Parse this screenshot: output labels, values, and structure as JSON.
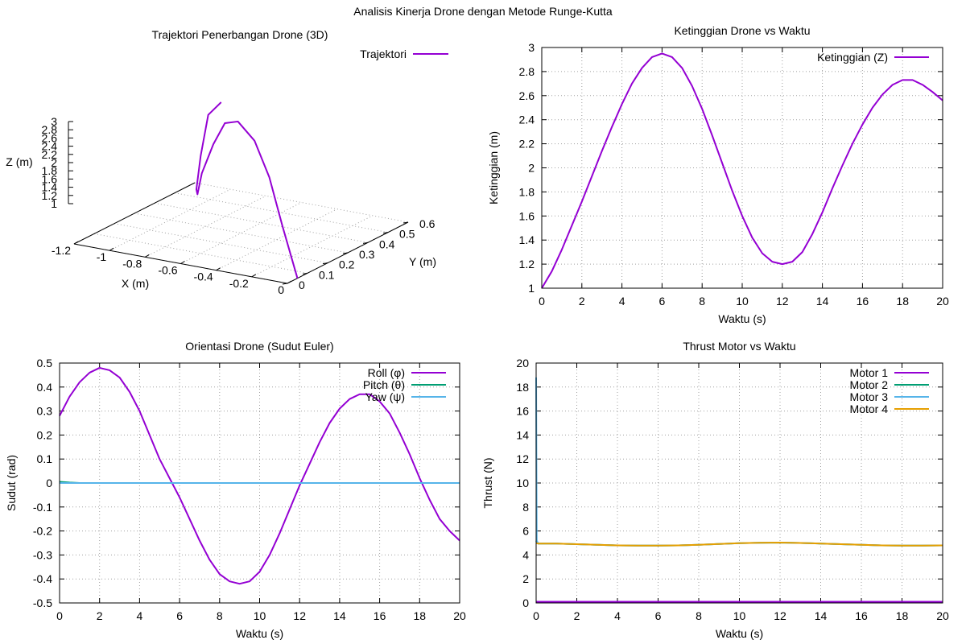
{
  "figure_title": "Analisis Kinerja Drone dengan Metode Runge-Kutta",
  "chart_data": [
    {
      "id": "trajectory3d",
      "type": "line",
      "title": "Trajektori Penerbangan Drone (3D)",
      "xlabel": "X (m)",
      "ylabel": "Y (m)",
      "zlabel": "Z (m)",
      "xlim": [
        -1.2,
        0
      ],
      "ylim": [
        0,
        0.6
      ],
      "zlim": [
        1,
        3
      ],
      "x_ticks": [
        "-1.2",
        "-1",
        "-0.8",
        "-0.6",
        "-0.4",
        "-0.2",
        "0"
      ],
      "y_ticks": [
        "0",
        "0.1",
        "0.2",
        "0.3",
        "0.4",
        "0.5",
        "0.6"
      ],
      "z_ticks": [
        "1",
        "1.2",
        "1.4",
        "1.6",
        "1.8",
        "2",
        "2.2",
        "2.4",
        "2.6",
        "2.8",
        "3"
      ],
      "legend_position": "top-right",
      "series": [
        {
          "name": "Trajektori",
          "color": "#9400d3",
          "x": [
            0,
            -0.13,
            -0.26,
            -0.4,
            -0.55,
            -0.68,
            -0.79,
            -0.9,
            -0.97,
            -1.01,
            -1.02,
            -1.0,
            -0.95
          ],
          "y": [
            0.05,
            0.09,
            0.14,
            0.19,
            0.24,
            0.29,
            0.33,
            0.37,
            0.41,
            0.44,
            0.47,
            0.49,
            0.51
          ],
          "z": [
            1.0,
            1.72,
            2.36,
            2.8,
            2.95,
            2.77,
            2.3,
            1.7,
            1.25,
            1.26,
            1.75,
            2.4,
            2.6
          ]
        }
      ]
    },
    {
      "id": "altitude",
      "type": "line",
      "title": "Ketinggian Drone vs Waktu",
      "xlabel": "Waktu (s)",
      "ylabel": "Ketinggian (m)",
      "xlim": [
        0,
        20
      ],
      "ylim": [
        1,
        3
      ],
      "x_ticks": [
        "0",
        "2",
        "4",
        "6",
        "8",
        "10",
        "12",
        "14",
        "16",
        "18",
        "20"
      ],
      "y_ticks": [
        "1",
        "1.2",
        "1.4",
        "1.6",
        "1.8",
        "2",
        "2.2",
        "2.4",
        "2.6",
        "2.8",
        "3"
      ],
      "grid": true,
      "legend_position": "top-right",
      "x": [
        0,
        0.5,
        1,
        1.5,
        2,
        2.5,
        3,
        3.5,
        4,
        4.5,
        5,
        5.5,
        6,
        6.5,
        7,
        7.5,
        8,
        8.5,
        9,
        9.5,
        10,
        10.5,
        11,
        11.5,
        12,
        12.5,
        13,
        13.5,
        14,
        14.5,
        15,
        15.5,
        16,
        16.5,
        17,
        17.5,
        18,
        18.5,
        19,
        19.5,
        20
      ],
      "series": [
        {
          "name": "Ketinggian (Z)",
          "color": "#9400d3",
          "values": [
            1.0,
            1.14,
            1.32,
            1.52,
            1.72,
            1.93,
            2.14,
            2.34,
            2.53,
            2.7,
            2.83,
            2.92,
            2.95,
            2.92,
            2.83,
            2.68,
            2.49,
            2.27,
            2.04,
            1.81,
            1.6,
            1.42,
            1.29,
            1.22,
            1.2,
            1.22,
            1.3,
            1.45,
            1.63,
            1.83,
            2.02,
            2.2,
            2.36,
            2.5,
            2.61,
            2.69,
            2.73,
            2.73,
            2.69,
            2.63,
            2.56
          ]
        }
      ]
    },
    {
      "id": "orientation",
      "type": "line",
      "title": "Orientasi Drone (Sudut Euler)",
      "xlabel": "Waktu (s)",
      "ylabel": "Sudut (rad)",
      "xlim": [
        0,
        20
      ],
      "ylim": [
        -0.5,
        0.5
      ],
      "x_ticks": [
        "0",
        "2",
        "4",
        "6",
        "8",
        "10",
        "12",
        "14",
        "16",
        "18",
        "20"
      ],
      "y_ticks": [
        "-0.5",
        "-0.4",
        "-0.3",
        "-0.2",
        "-0.1",
        "0",
        "0.1",
        "0.2",
        "0.3",
        "0.4",
        "0.5"
      ],
      "grid": true,
      "legend_position": "top-right",
      "x": [
        0,
        0.5,
        1,
        1.5,
        2,
        2.5,
        3,
        3.5,
        4,
        4.5,
        5,
        5.5,
        6,
        6.5,
        7,
        7.5,
        8,
        8.5,
        9,
        9.5,
        10,
        10.5,
        11,
        11.5,
        12,
        12.5,
        13,
        13.5,
        14,
        14.5,
        15,
        15.5,
        16,
        16.5,
        17,
        17.5,
        18,
        18.5,
        19,
        19.5,
        20
      ],
      "series": [
        {
          "name": "Roll (φ)",
          "color": "#9400d3",
          "values": [
            0.28,
            0.36,
            0.42,
            0.46,
            0.48,
            0.47,
            0.44,
            0.38,
            0.3,
            0.2,
            0.1,
            0.02,
            -0.06,
            -0.15,
            -0.24,
            -0.32,
            -0.38,
            -0.41,
            -0.42,
            -0.41,
            -0.37,
            -0.3,
            -0.21,
            -0.11,
            -0.01,
            0.08,
            0.17,
            0.25,
            0.31,
            0.35,
            0.37,
            0.37,
            0.34,
            0.29,
            0.21,
            0.12,
            0.02,
            -0.07,
            -0.15,
            -0.2,
            -0.24
          ]
        },
        {
          "name": "Pitch (θ)",
          "color": "#009e73",
          "values": [
            0.005,
            0.002,
            0,
            0,
            0,
            0,
            0,
            0,
            0,
            0,
            0,
            0,
            0,
            0,
            0,
            0,
            0,
            0,
            0,
            0,
            0,
            0,
            0,
            0,
            0,
            0,
            0,
            0,
            0,
            0,
            0,
            0,
            0,
            0,
            0,
            0,
            0,
            0,
            0,
            0,
            0
          ]
        },
        {
          "name": "Yaw (ψ)",
          "color": "#56b4e9",
          "values": [
            0,
            0,
            0,
            0,
            0,
            0,
            0,
            0,
            0,
            0,
            0,
            0,
            0,
            0,
            0,
            0,
            0,
            0,
            0,
            0,
            0,
            0,
            0,
            0,
            0,
            0,
            0,
            0,
            0,
            0,
            0,
            0,
            0,
            0,
            0,
            0,
            0,
            0,
            0,
            0,
            0
          ]
        }
      ]
    },
    {
      "id": "thrust",
      "type": "line",
      "title": "Thrust Motor vs Waktu",
      "xlabel": "Waktu (s)",
      "ylabel": "Thrust (N)",
      "xlim": [
        0,
        20
      ],
      "ylim": [
        0,
        20
      ],
      "x_ticks": [
        "0",
        "2",
        "4",
        "6",
        "8",
        "10",
        "12",
        "14",
        "16",
        "18",
        "20"
      ],
      "y_ticks": [
        "0",
        "2",
        "4",
        "6",
        "8",
        "10",
        "12",
        "14",
        "16",
        "18",
        "20"
      ],
      "grid": true,
      "legend_position": "top-right",
      "x": [
        0,
        0.03,
        0.1,
        0.5,
        1,
        2,
        3,
        4,
        5,
        6,
        7,
        8,
        9,
        10,
        11,
        12,
        13,
        14,
        15,
        16,
        17,
        18,
        19,
        20
      ],
      "series": [
        {
          "name": "Motor 1",
          "color": "#9400d3",
          "values": [
            0.1,
            0.1,
            0.1,
            0.1,
            0.1,
            0.1,
            0.1,
            0.1,
            0.1,
            0.1,
            0.1,
            0.1,
            0.1,
            0.1,
            0.1,
            0.1,
            0.1,
            0.1,
            0.1,
            0.1,
            0.1,
            0.1,
            0.1,
            0.1
          ]
        },
        {
          "name": "Motor 2",
          "color": "#009e73",
          "values": [
            5.2,
            5.1,
            4.95,
            4.95,
            4.95,
            4.9,
            4.85,
            4.8,
            4.78,
            4.78,
            4.8,
            4.85,
            4.92,
            4.98,
            5.02,
            5.03,
            5.0,
            4.95,
            4.9,
            4.85,
            4.8,
            4.78,
            4.78,
            4.8
          ]
        },
        {
          "name": "Motor 3",
          "color": "#56b4e9",
          "values": [
            18.8,
            5.2,
            4.95,
            4.95,
            4.95,
            4.9,
            4.85,
            4.8,
            4.78,
            4.78,
            4.8,
            4.85,
            4.92,
            4.98,
            5.02,
            5.03,
            5.0,
            4.95,
            4.9,
            4.85,
            4.8,
            4.78,
            4.78,
            4.8
          ]
        },
        {
          "name": "Motor 4",
          "color": "#e69f00",
          "values": [
            5.0,
            4.98,
            4.95,
            4.95,
            4.95,
            4.9,
            4.85,
            4.8,
            4.78,
            4.78,
            4.8,
            4.85,
            4.92,
            4.98,
            5.02,
            5.03,
            5.0,
            4.95,
            4.9,
            4.85,
            4.8,
            4.78,
            4.78,
            4.8
          ]
        }
      ]
    }
  ]
}
